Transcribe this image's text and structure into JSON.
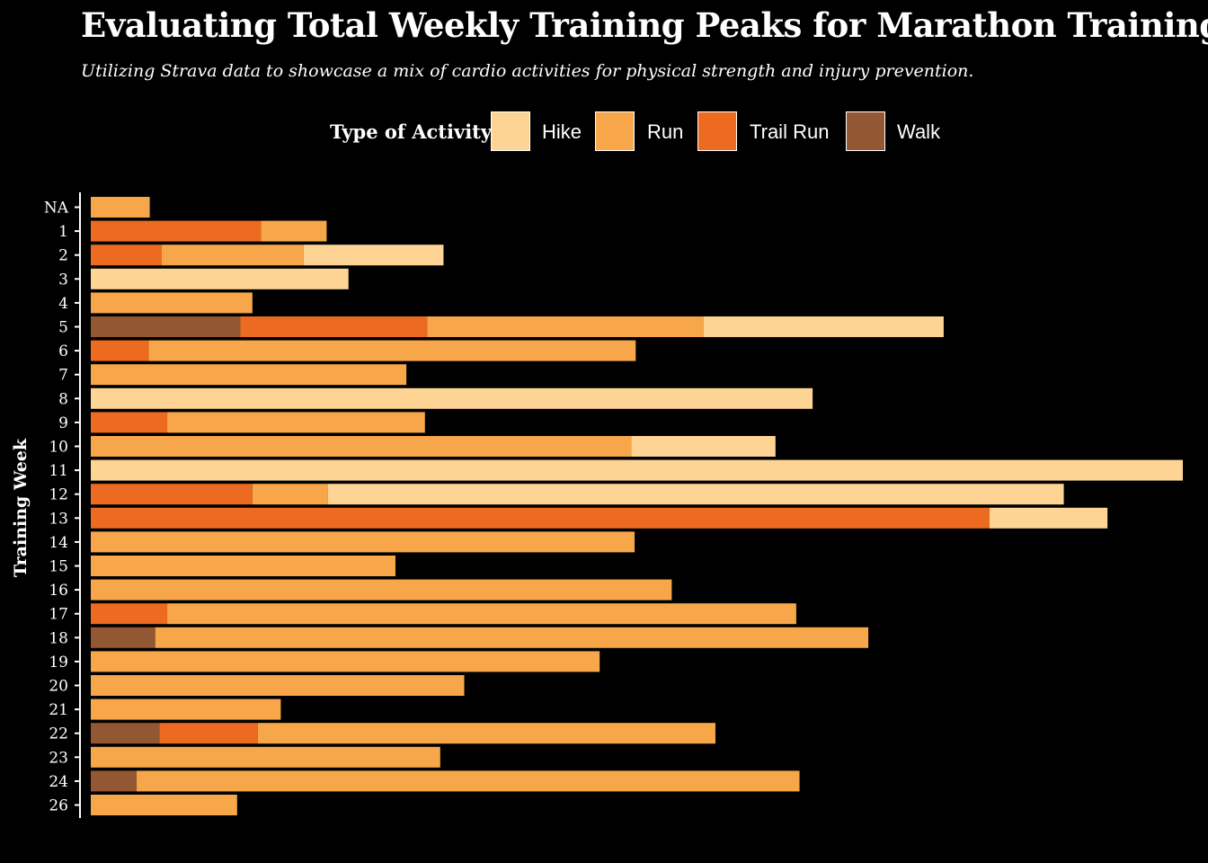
{
  "chart_data": {
    "type": "bar",
    "orientation": "horizontal",
    "stacked": true,
    "title": "Evaluating Total Weekly Training Peaks for Marathon Training",
    "subtitle": "Utilizing Strava data to showcase a mix of cardio activities for physical strength and injury prevention.",
    "xlabel": "",
    "ylabel": "Training Week",
    "xlim": [
      0,
      100
    ],
    "grid": false,
    "legend": {
      "title": "Type of Activity",
      "placement": "top",
      "entries": [
        "Hike",
        "Run",
        "Trail Run",
        "Walk"
      ]
    },
    "colors": {
      "Hike": "#FDD494",
      "Run": "#F7A74A",
      "Trail Run": "#EC6B20",
      "Walk": "#935833"
    },
    "categories": [
      "NA",
      "1",
      "2",
      "3",
      "4",
      "5",
      "6",
      "7",
      "8",
      "9",
      "10",
      "11",
      "12",
      "13",
      "14",
      "15",
      "16",
      "17",
      "18",
      "19",
      "20",
      "21",
      "22",
      "23",
      "24",
      "26"
    ],
    "series": [
      {
        "name": "Walk",
        "values": [
          0,
          0,
          0,
          0,
          0,
          13.7,
          0,
          0,
          0,
          0,
          0,
          0,
          0,
          0,
          0,
          0,
          0,
          0,
          5.9,
          0,
          0,
          0,
          6.3,
          0,
          4.2,
          0
        ]
      },
      {
        "name": "Trail Run",
        "values": [
          0,
          15.6,
          6.5,
          0,
          0,
          17.1,
          5.3,
          0,
          0,
          7.0,
          0,
          0,
          14.8,
          82.3,
          0,
          0,
          0,
          7.0,
          0,
          0,
          0,
          0,
          9.0,
          0,
          0,
          0
        ]
      },
      {
        "name": "Run",
        "values": [
          5.4,
          6.0,
          13.0,
          0,
          14.8,
          25.3,
          44.6,
          28.9,
          0,
          23.6,
          49.5,
          0,
          6.9,
          0,
          49.8,
          27.9,
          53.2,
          57.6,
          65.3,
          46.6,
          34.2,
          17.4,
          41.9,
          32.0,
          60.7,
          13.4
        ]
      },
      {
        "name": "Hike",
        "values": [
          0,
          0,
          12.8,
          23.6,
          0,
          22.0,
          0,
          0,
          66.1,
          0,
          13.2,
          100,
          67.4,
          10.8,
          0,
          0,
          0,
          0,
          0,
          0,
          0,
          0,
          0,
          0,
          0,
          0
        ]
      }
    ]
  }
}
